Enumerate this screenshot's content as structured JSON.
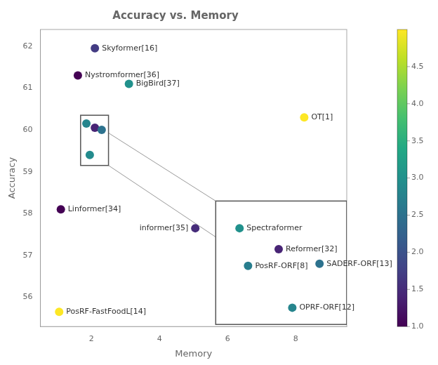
{
  "chart_data": {
    "type": "scatter",
    "title": "Accuracy vs. Memory",
    "xlabel": "Memory",
    "ylabel": "Accuracy",
    "xlim": [
      0.5,
      9.5
    ],
    "ylim": [
      55.3,
      62.4
    ],
    "xticks": [
      2,
      4,
      6,
      8
    ],
    "yticks": [
      56,
      57,
      58,
      59,
      60,
      61,
      62
    ],
    "grid": false,
    "points": [
      {
        "x": 1.85,
        "y": 60.15,
        "c": 2.8
      },
      {
        "x": 2.1,
        "y": 60.05,
        "c": 1.4
      },
      {
        "x": 2.3,
        "y": 60.0,
        "c": 2.5
      },
      {
        "x": 1.95,
        "y": 59.4,
        "c": 2.9
      },
      {
        "x": 2.1,
        "y": 61.95,
        "c": 1.7,
        "label": "Skyformer[16]"
      },
      {
        "x": 1.6,
        "y": 61.3,
        "c": 1.0,
        "label": "Nystromformer[36]"
      },
      {
        "x": 3.1,
        "y": 61.1,
        "c": 3.0,
        "label": "BigBird[37]"
      },
      {
        "x": 8.25,
        "y": 60.3,
        "c": 5.0,
        "label": "OT[1]"
      },
      {
        "x": 1.1,
        "y": 58.1,
        "c": 1.0,
        "label": "Linformer[34]"
      },
      {
        "x": 5.05,
        "y": 57.65,
        "c": 1.5,
        "label": "informer[35]"
      },
      {
        "x": 1.05,
        "y": 55.65,
        "c": 5.0,
        "label": "PosRF-FastFoodL[14]"
      },
      {
        "x": 6.35,
        "y": 57.65,
        "c": 3.0,
        "label": "Spectraformer"
      },
      {
        "x": 7.5,
        "y": 57.15,
        "c": 1.4,
        "label": "Reformer[32]"
      },
      {
        "x": 6.6,
        "y": 56.75,
        "c": 2.7,
        "label": "PosRF-ORF[8]"
      },
      {
        "x": 8.7,
        "y": 56.8,
        "c": 2.5,
        "label": "SADERF-ORF[13]"
      },
      {
        "x": 7.9,
        "y": 55.75,
        "c": 2.8,
        "label": "OPRF-ORF[12]"
      }
    ],
    "clim": [
      1.0,
      5.0
    ],
    "cticks": [
      {
        "value": 1.0,
        "label": "1.0"
      },
      1.5,
      {
        "value": 2.0,
        "label": "2.0"
      },
      2.5,
      {
        "value": 3.0,
        "label": "3.0"
      },
      3.5,
      {
        "value": 4.0,
        "label": "4.0"
      },
      4.5
    ],
    "boxes": [
      {
        "x0": 1.68,
        "y0": 59.15,
        "x1": 2.5,
        "y1": 60.35
      },
      {
        "x0": 5.65,
        "y0": 55.35,
        "x1": 9.5,
        "y1": 58.3
      }
    ],
    "lines": [
      [
        [
          1.68,
          60.35
        ],
        [
          5.65,
          58.3
        ]
      ],
      [
        [
          2.5,
          59.15
        ],
        [
          9.5,
          55.35
        ]
      ]
    ]
  }
}
